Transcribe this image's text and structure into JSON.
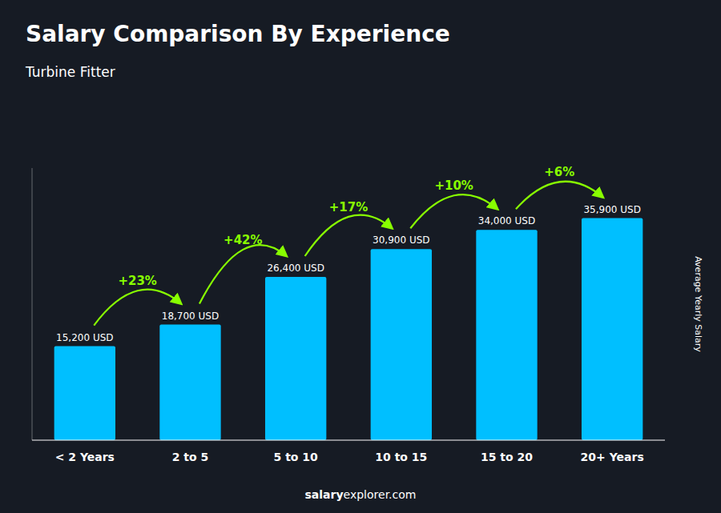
{
  "chart_data": {
    "type": "bar",
    "title": "Salary Comparison By Experience",
    "subtitle": "Turbine Fitter",
    "y_label": "Average Yearly Salary",
    "categories": [
      "< 2 Years",
      "2 to 5",
      "5 to 10",
      "10 to 15",
      "15 to 20",
      "20+ Years"
    ],
    "values": [
      15200,
      18700,
      26400,
      30900,
      34000,
      35900
    ],
    "value_labels": [
      "15,200 USD",
      "18,700 USD",
      "26,400 USD",
      "30,900 USD",
      "34,000 USD",
      "35,900 USD"
    ],
    "data_labels": true,
    "color": "#00BFFF",
    "ylim": [
      0,
      44000
    ],
    "tick_labels": "x",
    "grid": false,
    "annotations": [
      {
        "text": "+23%",
        "color": "#88FF00"
      },
      {
        "text": "+42%",
        "color": "#88FF00"
      },
      {
        "text": "+17%",
        "color": "#88FF00"
      },
      {
        "text": "+10%",
        "color": "#88FF00"
      },
      {
        "text": "+6%",
        "color": "#88FF00"
      }
    ],
    "watermark": {
      "bold": "salary",
      "normal": "explorer.com"
    }
  }
}
